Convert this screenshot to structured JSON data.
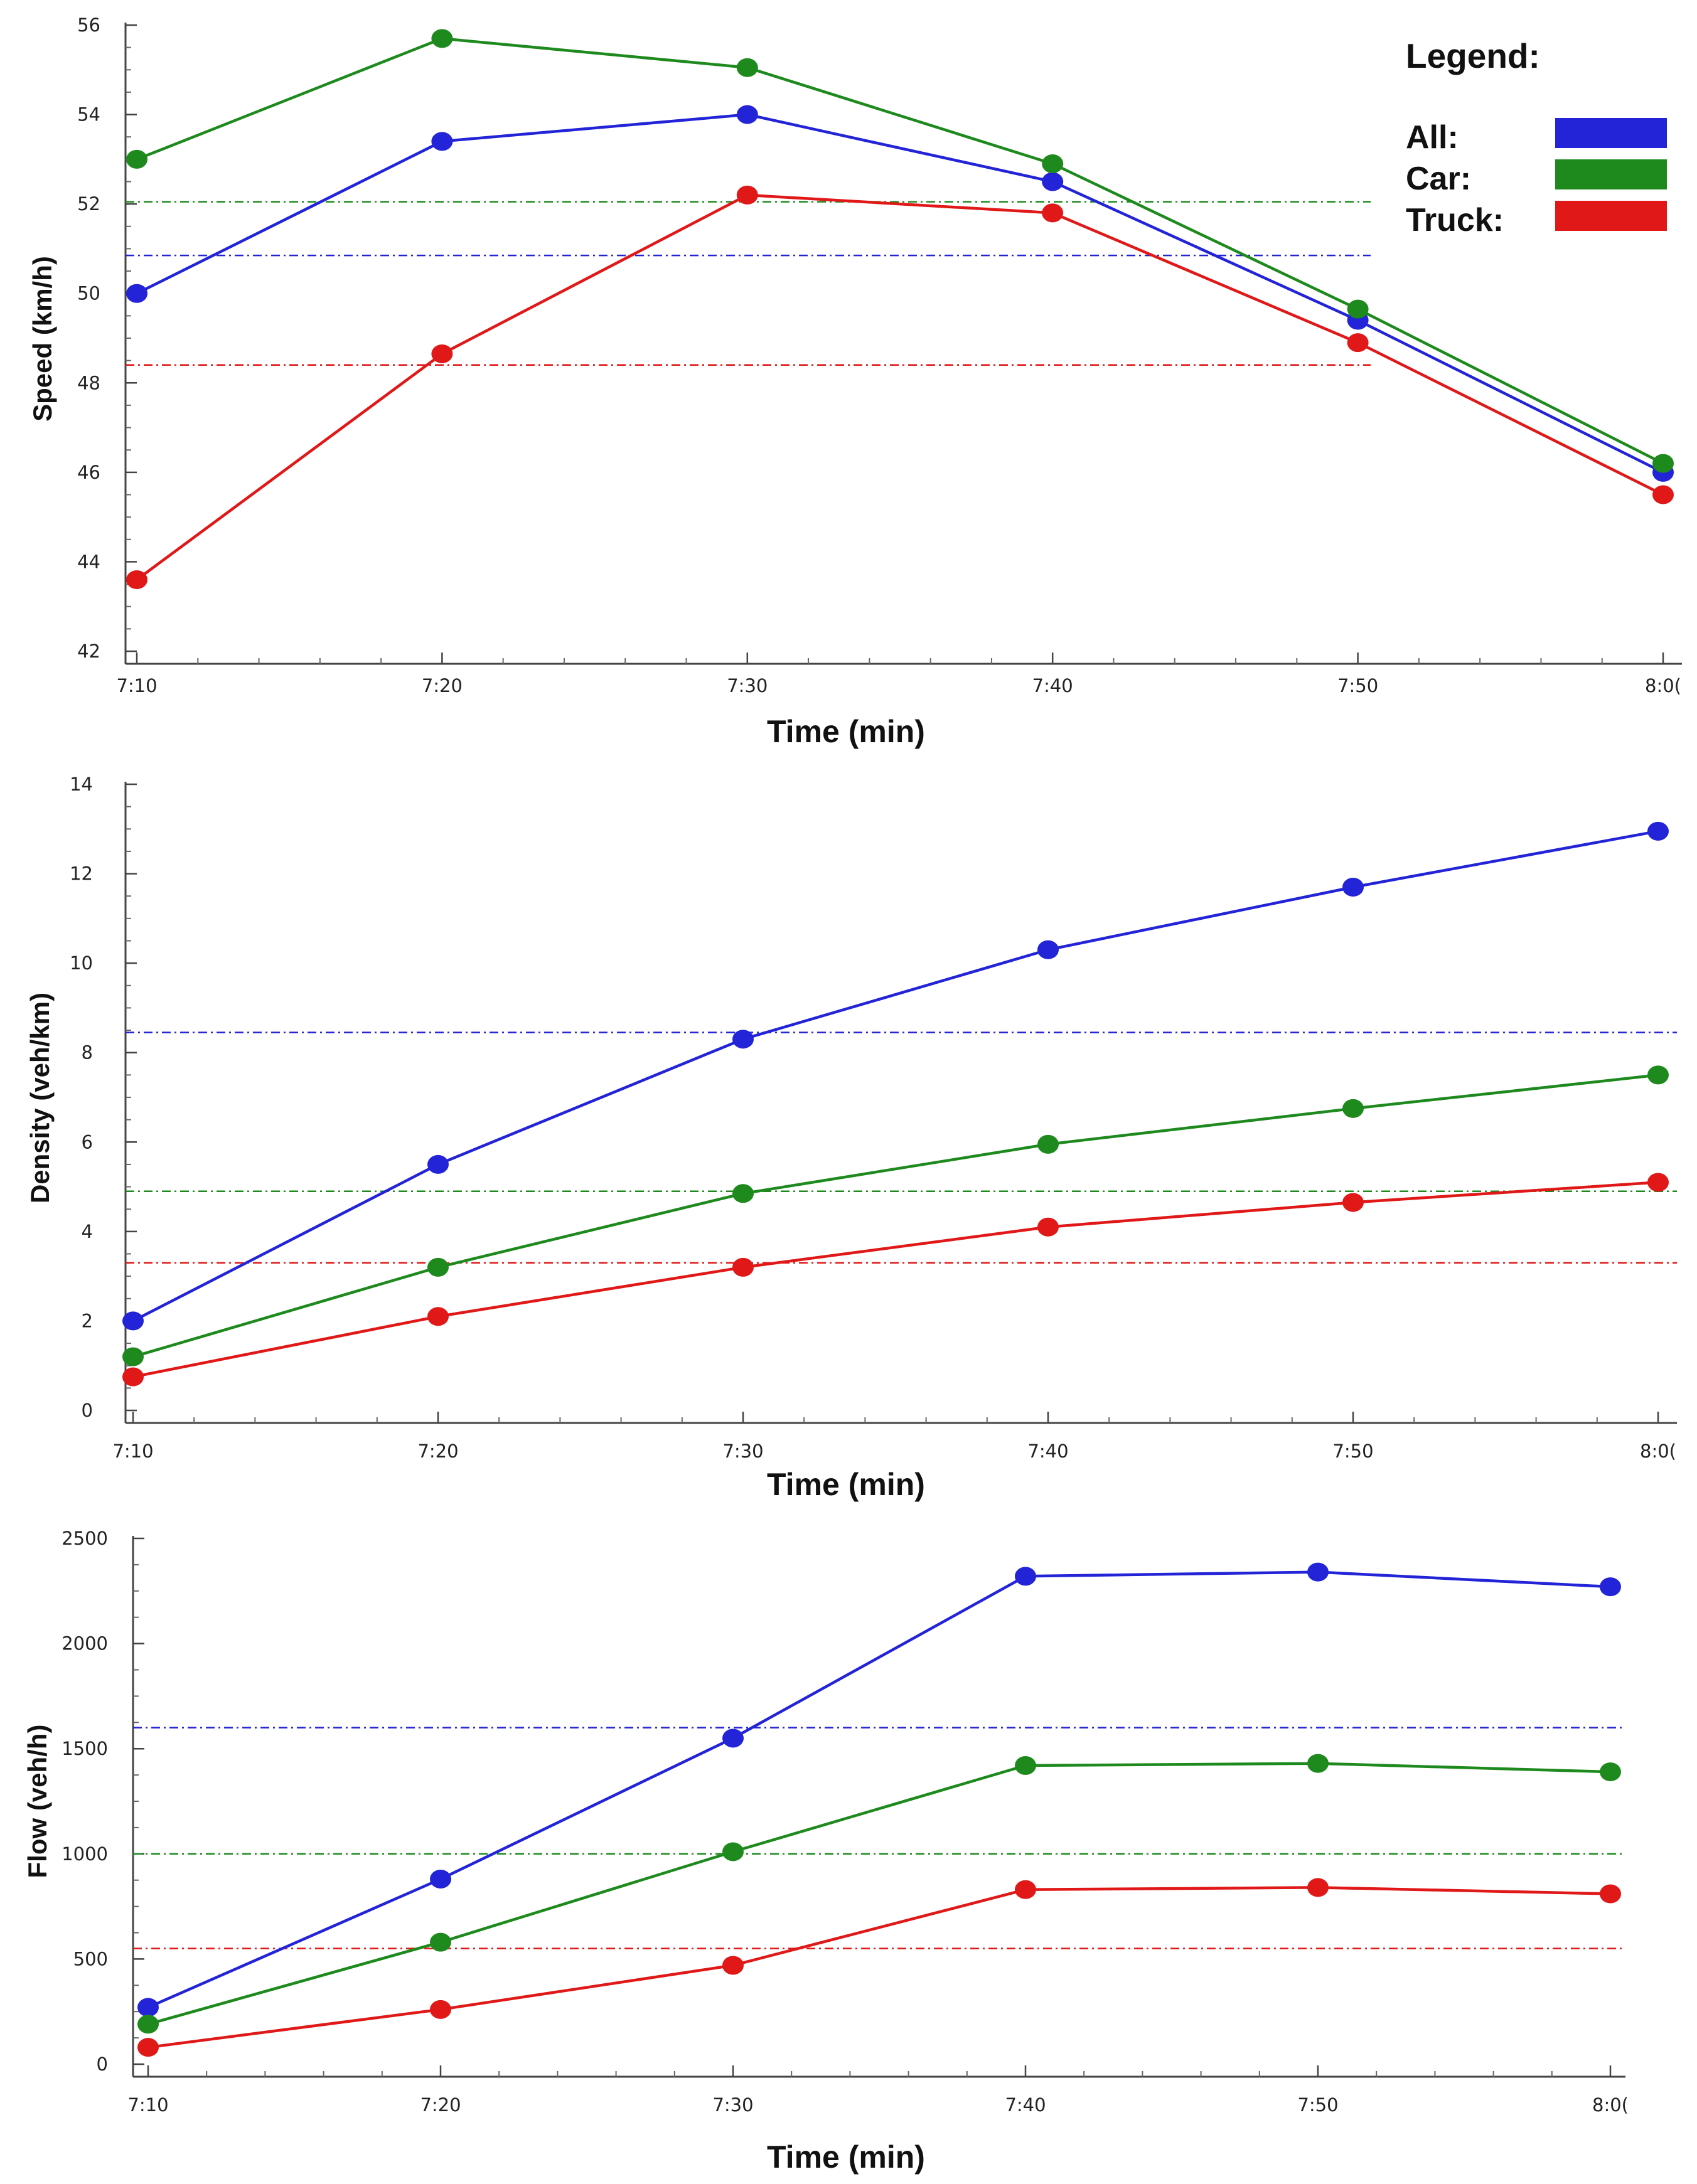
{
  "colors": {
    "All": "#2323d8",
    "Car": "#1e8a1e",
    "Truck": "#e01818"
  },
  "legend": {
    "title": "Legend:",
    "items": [
      {
        "label": "All:",
        "series": "All"
      },
      {
        "label": "Car:",
        "series": "Car"
      },
      {
        "label": "Truck:",
        "series": "Truck"
      }
    ]
  },
  "chart_data": [
    {
      "type": "line",
      "xlabel": "Time (min)",
      "ylabel": "Speed (km/h)",
      "categories": [
        "7:10",
        "7:20",
        "7:30",
        "7:40",
        "7:50",
        "8:0("
      ],
      "ylim": [
        42,
        56
      ],
      "yticks": [
        42,
        44,
        46,
        48,
        50,
        52,
        54,
        56
      ],
      "series": [
        {
          "name": "All",
          "values": [
            50.0,
            53.4,
            54.0,
            52.5,
            49.4,
            46.0
          ],
          "mean": 50.85
        },
        {
          "name": "Car",
          "values": [
            53.0,
            55.7,
            55.05,
            52.9,
            49.65,
            46.2
          ],
          "mean": 52.05
        },
        {
          "name": "Truck",
          "values": [
            43.6,
            48.65,
            52.2,
            51.8,
            48.9,
            45.5
          ],
          "mean": 48.4
        }
      ]
    },
    {
      "type": "line",
      "xlabel": "Time (min)",
      "ylabel": "Density (veh/km)",
      "categories": [
        "7:10",
        "7:20",
        "7:30",
        "7:40",
        "7:50",
        "8:0("
      ],
      "ylim": [
        0,
        14
      ],
      "yticks": [
        0,
        2,
        4,
        6,
        8,
        10,
        12,
        14
      ],
      "series": [
        {
          "name": "All",
          "values": [
            2.0,
            5.5,
            8.3,
            10.3,
            11.7,
            12.95
          ],
          "mean": 8.45
        },
        {
          "name": "Car",
          "values": [
            1.2,
            3.2,
            4.85,
            5.95,
            6.75,
            7.5
          ],
          "mean": 4.9
        },
        {
          "name": "Truck",
          "values": [
            0.75,
            2.1,
            3.2,
            4.1,
            4.65,
            5.1
          ],
          "mean": 3.3
        }
      ]
    },
    {
      "type": "line",
      "xlabel": "Time (min)",
      "ylabel": "Flow (veh/h)",
      "categories": [
        "7:10",
        "7:20",
        "7:30",
        "7:40",
        "7:50",
        "8:0("
      ],
      "ylim": [
        0,
        2500
      ],
      "yticks": [
        0,
        500,
        1000,
        1500,
        2000,
        2500
      ],
      "series": [
        {
          "name": "All",
          "values": [
            270,
            880,
            1550,
            2320,
            2340,
            2270
          ],
          "mean": 1600
        },
        {
          "name": "Car",
          "values": [
            190,
            580,
            1010,
            1420,
            1430,
            1390
          ],
          "mean": 1000
        },
        {
          "name": "Truck",
          "values": [
            80,
            260,
            470,
            830,
            840,
            810
          ],
          "mean": 550
        }
      ]
    }
  ]
}
